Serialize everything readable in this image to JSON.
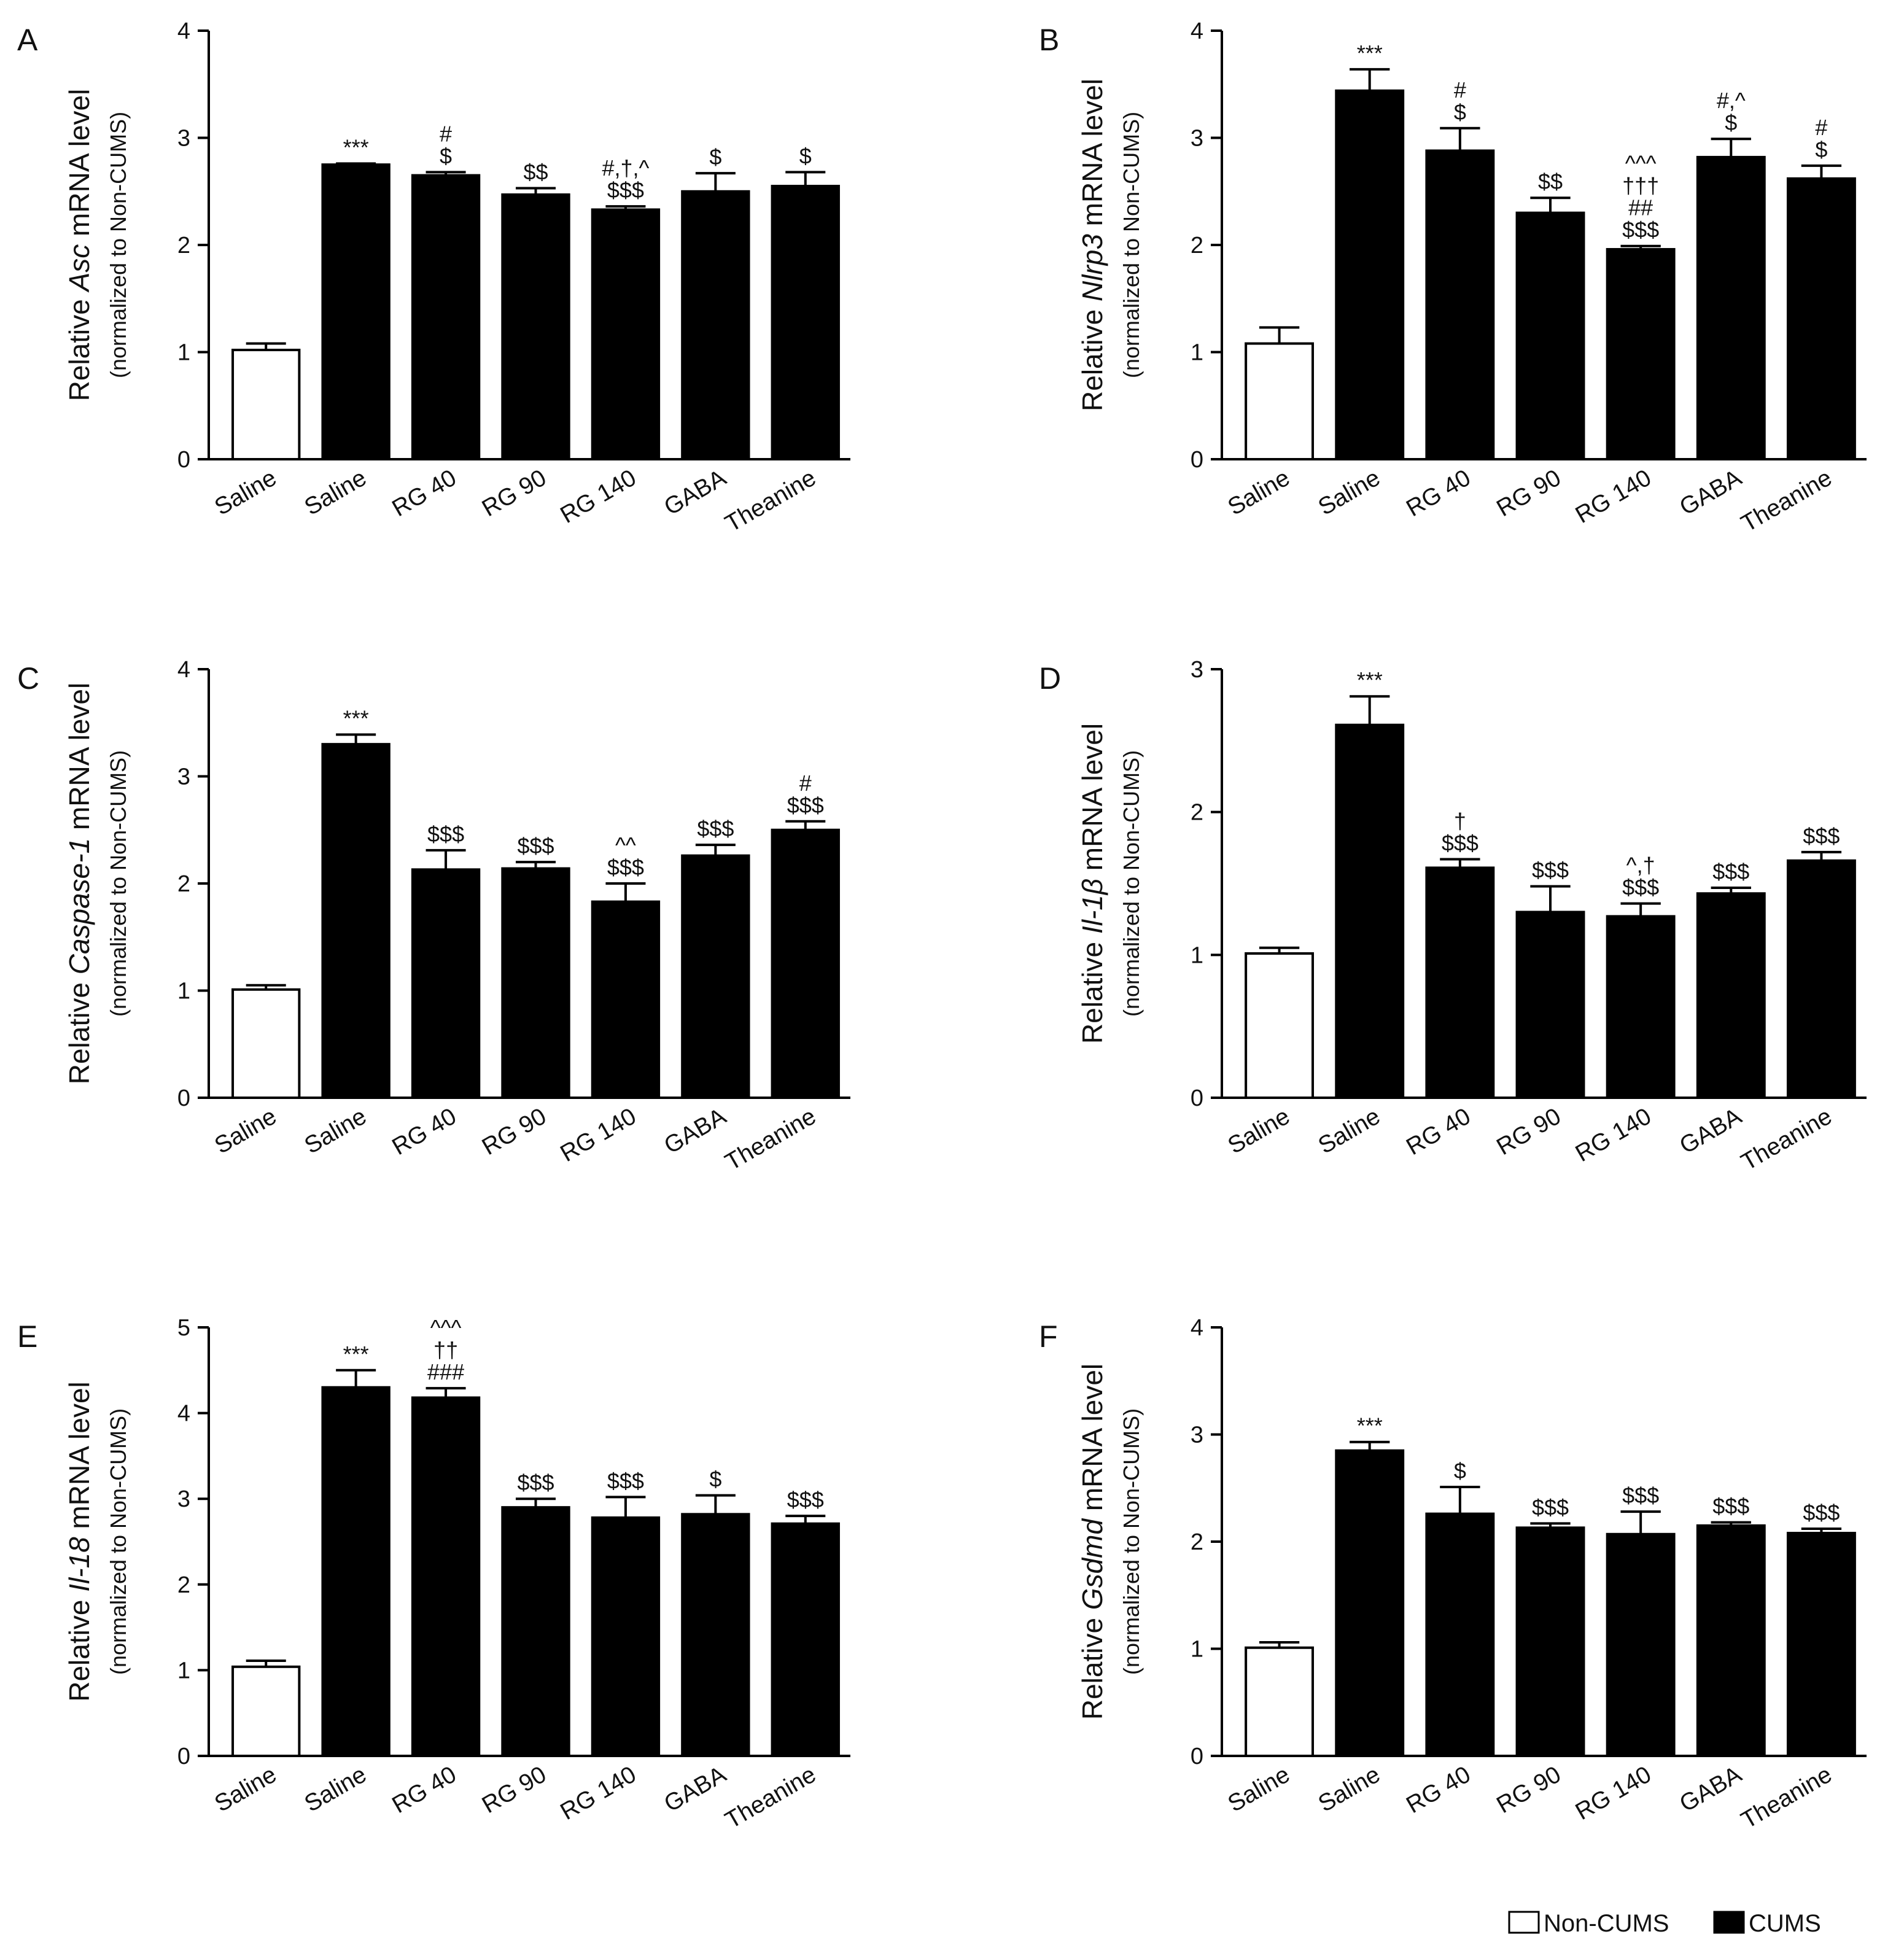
{
  "chart_data": [
    {
      "panel": "A",
      "type": "bar",
      "gene": "Asc",
      "ylabel_prefix": "Relative ",
      "ylabel_suffix": " mRNA level",
      "ylabel_sub": "(normalized to Non-CUMS)",
      "ylim": [
        0,
        4
      ],
      "yticks": [
        "0",
        "1",
        "2",
        "3",
        "4"
      ],
      "categories": [
        "Saline",
        "Saline",
        "RG 40",
        "RG 90",
        "RG 140",
        "GABA",
        "Theanine"
      ],
      "groups": [
        "Non-CUMS",
        "CUMS",
        "CUMS",
        "CUMS",
        "CUMS",
        "CUMS",
        "CUMS"
      ],
      "values": [
        1.02,
        2.75,
        2.65,
        2.47,
        2.33,
        2.5,
        2.55
      ],
      "errors": [
        0.06,
        0.01,
        0.03,
        0.06,
        0.03,
        0.17,
        0.13
      ],
      "annotations": [
        [],
        [
          "***"
        ],
        [
          "#",
          "$"
        ],
        [
          "$$"
        ],
        [
          "#,†,^",
          "$$$"
        ],
        [
          "$"
        ],
        [
          "$"
        ]
      ]
    },
    {
      "panel": "B",
      "type": "bar",
      "gene": "Nlrp3",
      "ylabel_prefix": "Relative ",
      "ylabel_suffix": " mRNA level",
      "ylabel_sub": "(normalized to Non-CUMS)",
      "ylim": [
        0,
        4
      ],
      "yticks": [
        "0",
        "1",
        "2",
        "3",
        "4"
      ],
      "categories": [
        "Saline",
        "Saline",
        "RG 40",
        "RG 90",
        "RG 140",
        "GABA",
        "Theanine"
      ],
      "groups": [
        "Non-CUMS",
        "CUMS",
        "CUMS",
        "CUMS",
        "CUMS",
        "CUMS",
        "CUMS"
      ],
      "values": [
        1.08,
        3.44,
        2.88,
        2.3,
        1.96,
        2.82,
        2.62
      ],
      "errors": [
        0.15,
        0.2,
        0.21,
        0.14,
        0.03,
        0.17,
        0.12
      ],
      "annotations": [
        [],
        [
          "***"
        ],
        [
          "#",
          "$"
        ],
        [
          "$$"
        ],
        [
          "^^^",
          "†††",
          "##",
          "$$$"
        ],
        [
          "#,^",
          "$"
        ],
        [
          "#",
          "$"
        ]
      ]
    },
    {
      "panel": "C",
      "type": "bar",
      "gene": "Caspase-1",
      "ylabel_prefix": "Relative ",
      "ylabel_suffix": " mRNA level",
      "ylabel_sub": "(normalized to Non-CUMS)",
      "ylim": [
        0,
        4
      ],
      "yticks": [
        "0",
        "1",
        "2",
        "3",
        "4"
      ],
      "categories": [
        "Saline",
        "Saline",
        "RG 40",
        "RG 90",
        "RG 140",
        "GABA",
        "Theanine"
      ],
      "groups": [
        "Non-CUMS",
        "CUMS",
        "CUMS",
        "CUMS",
        "CUMS",
        "CUMS",
        "CUMS"
      ],
      "values": [
        1.01,
        3.3,
        2.13,
        2.14,
        1.83,
        2.26,
        2.5
      ],
      "errors": [
        0.04,
        0.09,
        0.18,
        0.06,
        0.17,
        0.1,
        0.08
      ],
      "annotations": [
        [],
        [
          "***"
        ],
        [
          "$$$"
        ],
        [
          "$$$"
        ],
        [
          "^^",
          "$$$"
        ],
        [
          "$$$"
        ],
        [
          "#",
          "$$$"
        ]
      ]
    },
    {
      "panel": "D",
      "type": "bar",
      "gene": "Il-1β",
      "ylabel_prefix": "Relative ",
      "ylabel_suffix": " mRNA level",
      "ylabel_sub": "(normalized to Non-CUMS)",
      "ylim": [
        0,
        3
      ],
      "yticks": [
        "0",
        "1",
        "2",
        "3"
      ],
      "categories": [
        "Saline",
        "Saline",
        "RG 40",
        "RG 90",
        "RG 140",
        "GABA",
        "Theanine"
      ],
      "groups": [
        "Non-CUMS",
        "CUMS",
        "CUMS",
        "CUMS",
        "CUMS",
        "CUMS",
        "CUMS"
      ],
      "values": [
        1.01,
        2.61,
        1.61,
        1.3,
        1.27,
        1.43,
        1.66
      ],
      "errors": [
        0.04,
        0.2,
        0.06,
        0.18,
        0.09,
        0.04,
        0.06
      ],
      "annotations": [
        [],
        [
          "***"
        ],
        [
          "†",
          "$$$"
        ],
        [
          "$$$"
        ],
        [
          "^,†",
          "$$$"
        ],
        [
          "$$$"
        ],
        [
          "$$$"
        ]
      ]
    },
    {
      "panel": "E",
      "type": "bar",
      "gene": "Il-18",
      "ylabel_prefix": "Relative ",
      "ylabel_suffix": " mRNA level",
      "ylabel_sub": "(normalized to Non-CUMS)",
      "ylim": [
        0,
        5
      ],
      "yticks": [
        "0",
        "1",
        "2",
        "3",
        "4",
        "5"
      ],
      "categories": [
        "Saline",
        "Saline",
        "RG 40",
        "RG 90",
        "RG 140",
        "GABA",
        "Theanine"
      ],
      "groups": [
        "Non-CUMS",
        "CUMS",
        "CUMS",
        "CUMS",
        "CUMS",
        "CUMS",
        "CUMS"
      ],
      "values": [
        1.04,
        4.3,
        4.18,
        2.9,
        2.78,
        2.82,
        2.71
      ],
      "errors": [
        0.07,
        0.2,
        0.11,
        0.1,
        0.24,
        0.22,
        0.09
      ],
      "annotations": [
        [],
        [
          "***"
        ],
        [
          "^^^",
          "††",
          "###"
        ],
        [
          "$$$"
        ],
        [
          "$$$"
        ],
        [
          "$"
        ],
        [
          "$$$"
        ]
      ]
    },
    {
      "panel": "F",
      "type": "bar",
      "gene": "Gsdmd",
      "ylabel_prefix": "Relative ",
      "ylabel_suffix": " mRNA level",
      "ylabel_sub": "(normalized to Non-CUMS)",
      "ylim": [
        0,
        4
      ],
      "yticks": [
        "0",
        "1",
        "2",
        "3",
        "4"
      ],
      "categories": [
        "Saline",
        "Saline",
        "RG 40",
        "RG 90",
        "RG 140",
        "GABA",
        "Theanine"
      ],
      "groups": [
        "Non-CUMS",
        "CUMS",
        "CUMS",
        "CUMS",
        "CUMS",
        "CUMS",
        "CUMS"
      ],
      "values": [
        1.01,
        2.85,
        2.26,
        2.13,
        2.07,
        2.15,
        2.08
      ],
      "errors": [
        0.05,
        0.08,
        0.25,
        0.04,
        0.21,
        0.03,
        0.04
      ],
      "annotations": [
        [],
        [
          "***"
        ],
        [
          "$"
        ],
        [
          "$$$"
        ],
        [
          "$$$"
        ],
        [
          "$$$"
        ],
        [
          "$$$"
        ]
      ]
    }
  ],
  "legend": {
    "items": [
      {
        "label": "Non-CUMS",
        "color": "#ffffff"
      },
      {
        "label": "CUMS",
        "color": "#000000"
      }
    ]
  },
  "colors": {
    "cums": "#000000",
    "non_cums": "#ffffff",
    "axis": "#000000"
  }
}
